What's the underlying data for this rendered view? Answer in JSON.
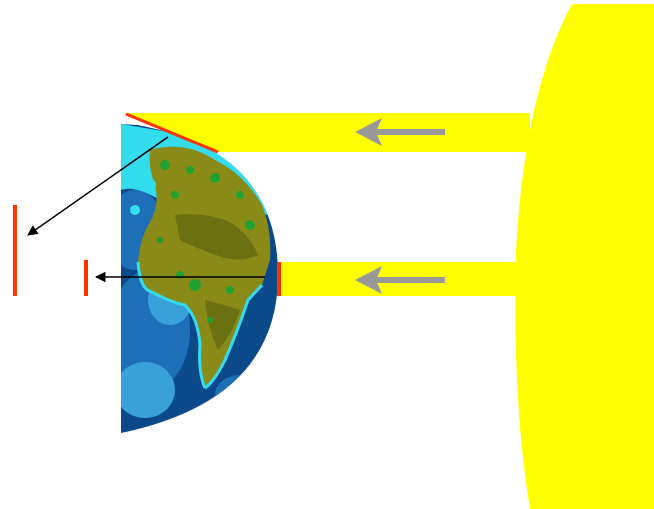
{
  "diagram": {
    "colors": {
      "background": "#ffffff",
      "sunlight": "#ffff00",
      "sun": "#ffff00",
      "incoming_arrow": "#999999",
      "surface_marker": "#ff3300",
      "outgoing_arrow": "#000000",
      "ocean_deep": "#0a4a8a",
      "ocean_mid": "#1d70b8",
      "ocean_light": "#3aa0d8",
      "shallow": "#33ddee",
      "land": "#8a8a18",
      "land_dark": "#6b7010",
      "vegetation": "#22a030"
    },
    "icons": {
      "sun": "sun-icon",
      "earth": "earth-icon",
      "incoming_arrow": "arrow-left-icon",
      "outgoing_arrow": "arrow-icon"
    },
    "elements": {
      "sun": "sun",
      "earth": "earth-hemisphere",
      "beams": [
        "sunbeam-oblique",
        "sunbeam-direct"
      ],
      "markers": [
        "surface-marker-oblique",
        "surface-marker-direct",
        "projected-marker-oblique",
        "projected-marker-direct"
      ]
    }
  }
}
